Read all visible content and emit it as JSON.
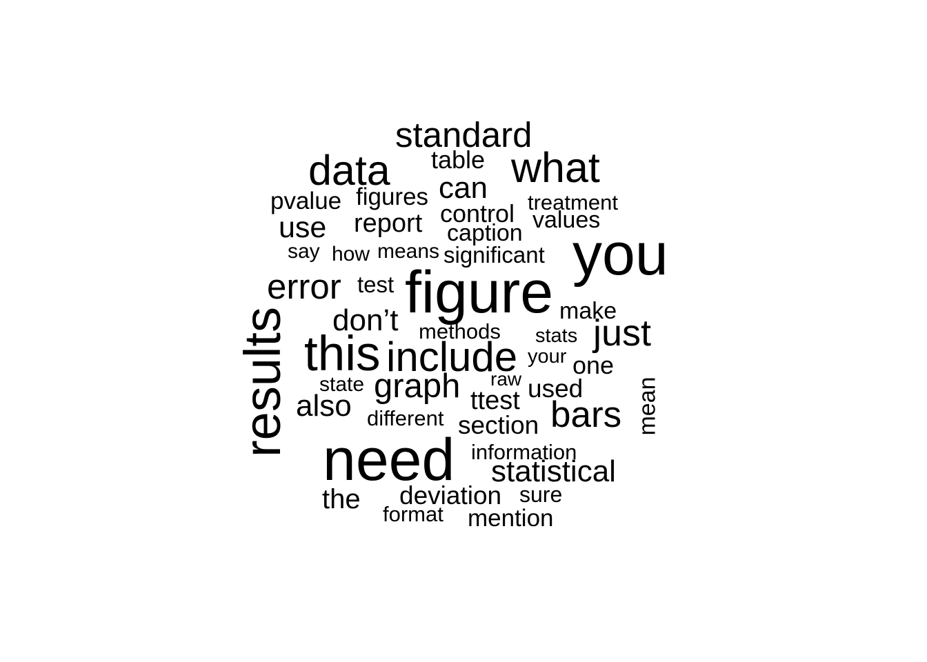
{
  "words": [
    {
      "text": "need",
      "size": 5
    },
    {
      "text": "figure",
      "size": 5
    },
    {
      "text": "you",
      "size": 5
    },
    {
      "text": "results",
      "size": 4
    },
    {
      "text": "this",
      "size": 4
    },
    {
      "text": "include",
      "size": 4
    },
    {
      "text": "data",
      "size": 4
    },
    {
      "text": "what",
      "size": 4
    },
    {
      "text": "standard",
      "size": 3
    },
    {
      "text": "error",
      "size": 3
    },
    {
      "text": "bars",
      "size": 3
    },
    {
      "text": "just",
      "size": 3
    },
    {
      "text": "graph",
      "size": 3
    },
    {
      "text": "statistical",
      "size": 2
    },
    {
      "text": "can",
      "size": 2
    },
    {
      "text": "don’t",
      "size": 2
    },
    {
      "text": "also",
      "size": 2
    },
    {
      "text": "use",
      "size": 2
    },
    {
      "text": "report",
      "size": 2
    },
    {
      "text": "ttest",
      "size": 2
    },
    {
      "text": "used",
      "size": 2
    },
    {
      "text": "section",
      "size": 2
    },
    {
      "text": "deviation",
      "size": 2
    },
    {
      "text": "mention",
      "size": 2
    },
    {
      "text": "the",
      "size": 2
    },
    {
      "text": "mean",
      "size": 2
    },
    {
      "text": "control",
      "size": 2
    },
    {
      "text": "table",
      "size": 2
    },
    {
      "text": "figures",
      "size": 2
    },
    {
      "text": "pvalue",
      "size": 2
    },
    {
      "text": "values",
      "size": 2
    },
    {
      "text": "caption",
      "size": 2
    },
    {
      "text": "one",
      "size": 2
    },
    {
      "text": "make",
      "size": 2
    },
    {
      "text": "treatment",
      "size": 1
    },
    {
      "text": "significant",
      "size": 1
    },
    {
      "text": "test",
      "size": 1
    },
    {
      "text": "methods",
      "size": 1
    },
    {
      "text": "stats",
      "size": 1
    },
    {
      "text": "your",
      "size": 1
    },
    {
      "text": "raw",
      "size": 1
    },
    {
      "text": "state",
      "size": 1
    },
    {
      "text": "different",
      "size": 1
    },
    {
      "text": "information",
      "size": 1
    },
    {
      "text": "sure",
      "size": 1
    },
    {
      "text": "format",
      "size": 1
    },
    {
      "text": "say",
      "size": 1
    },
    {
      "text": "how",
      "size": 1
    },
    {
      "text": "means",
      "size": 1
    }
  ]
}
